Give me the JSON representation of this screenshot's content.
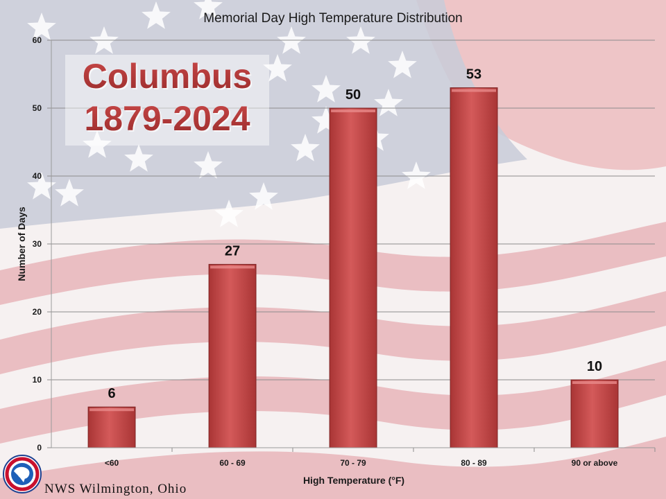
{
  "header": {
    "title": "Memorial Day High Temperature Distribution"
  },
  "overlay": {
    "line1": "Columbus",
    "line2": "1879-2024"
  },
  "footer": {
    "agency": "NWS Wilmington, Ohio"
  },
  "colors": {
    "bar": "#c84c4c",
    "overlay_text": "#b03838",
    "flag_red": "#e9b8bc",
    "flag_white": "#f6f1f1",
    "canton": "#c8cbd8"
  },
  "chart_data": {
    "type": "bar",
    "title": "Memorial Day High Temperature Distribution",
    "xlabel": "High Temperature (°F)",
    "ylabel": "Number of Days",
    "categories": [
      "<60",
      "60 - 69",
      "70 - 79",
      "80 - 89",
      "90 or above"
    ],
    "values": [
      6,
      27,
      50,
      53,
      10
    ],
    "ylim": [
      0,
      60
    ],
    "yticks": [
      0,
      10,
      20,
      30,
      40,
      50,
      60
    ],
    "grid": true,
    "legend": "none"
  }
}
